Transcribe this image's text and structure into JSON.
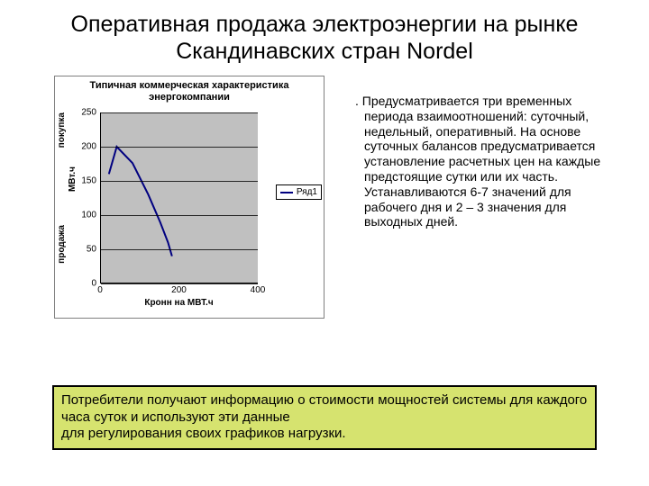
{
  "title": "Оперативная продажа электроэнергии на рынке Скандинавских стран Nordel",
  "chart": {
    "type": "line",
    "title": "Типичная коммерческая характеристика энергокомпании",
    "x_axis_label": "Кронн на МВТ.ч",
    "y_axis_label_top": "покупка",
    "y_axis_label_mid": "МВт.ч",
    "y_axis_label_bot": "продажа",
    "xlim": [
      0,
      400
    ],
    "ylim": [
      0,
      250
    ],
    "xticks": [
      0,
      200,
      400
    ],
    "yticks": [
      0,
      50,
      100,
      150,
      200,
      250
    ],
    "grid_color": "#000000",
    "plot_bg": "#c0c0c0",
    "panel_border": "#7f7f7f",
    "line_color": "#000080",
    "line_width": 2,
    "legend_label": "Ряд1",
    "series": [
      {
        "x": 20,
        "y": 160
      },
      {
        "x": 40,
        "y": 200
      },
      {
        "x": 80,
        "y": 176
      },
      {
        "x": 120,
        "y": 130
      },
      {
        "x": 150,
        "y": 90
      },
      {
        "x": 170,
        "y": 60
      },
      {
        "x": 180,
        "y": 40
      }
    ],
    "tick_fontsize": 10,
    "title_fontsize": 11,
    "label_fontsize": 10
  },
  "body_text": ".  Предусматривается три временных периода взаимоотношений: суточный, недельный, оперативный. На основе суточных балансов предусматривается установление расчетных цен на каждые предстоящие сутки или их часть. Устанавливаются 6-7 значений для рабочего дня и 2 – 3 значения для выходных дней.",
  "footer_text": "Потребители получают информацию о стоимости мощностей системы для каждого часа суток и используют эти данные\n для регулирования своих графиков нагрузки.",
  "footer_bg": "#d6e36f",
  "footer_border": "#000000"
}
